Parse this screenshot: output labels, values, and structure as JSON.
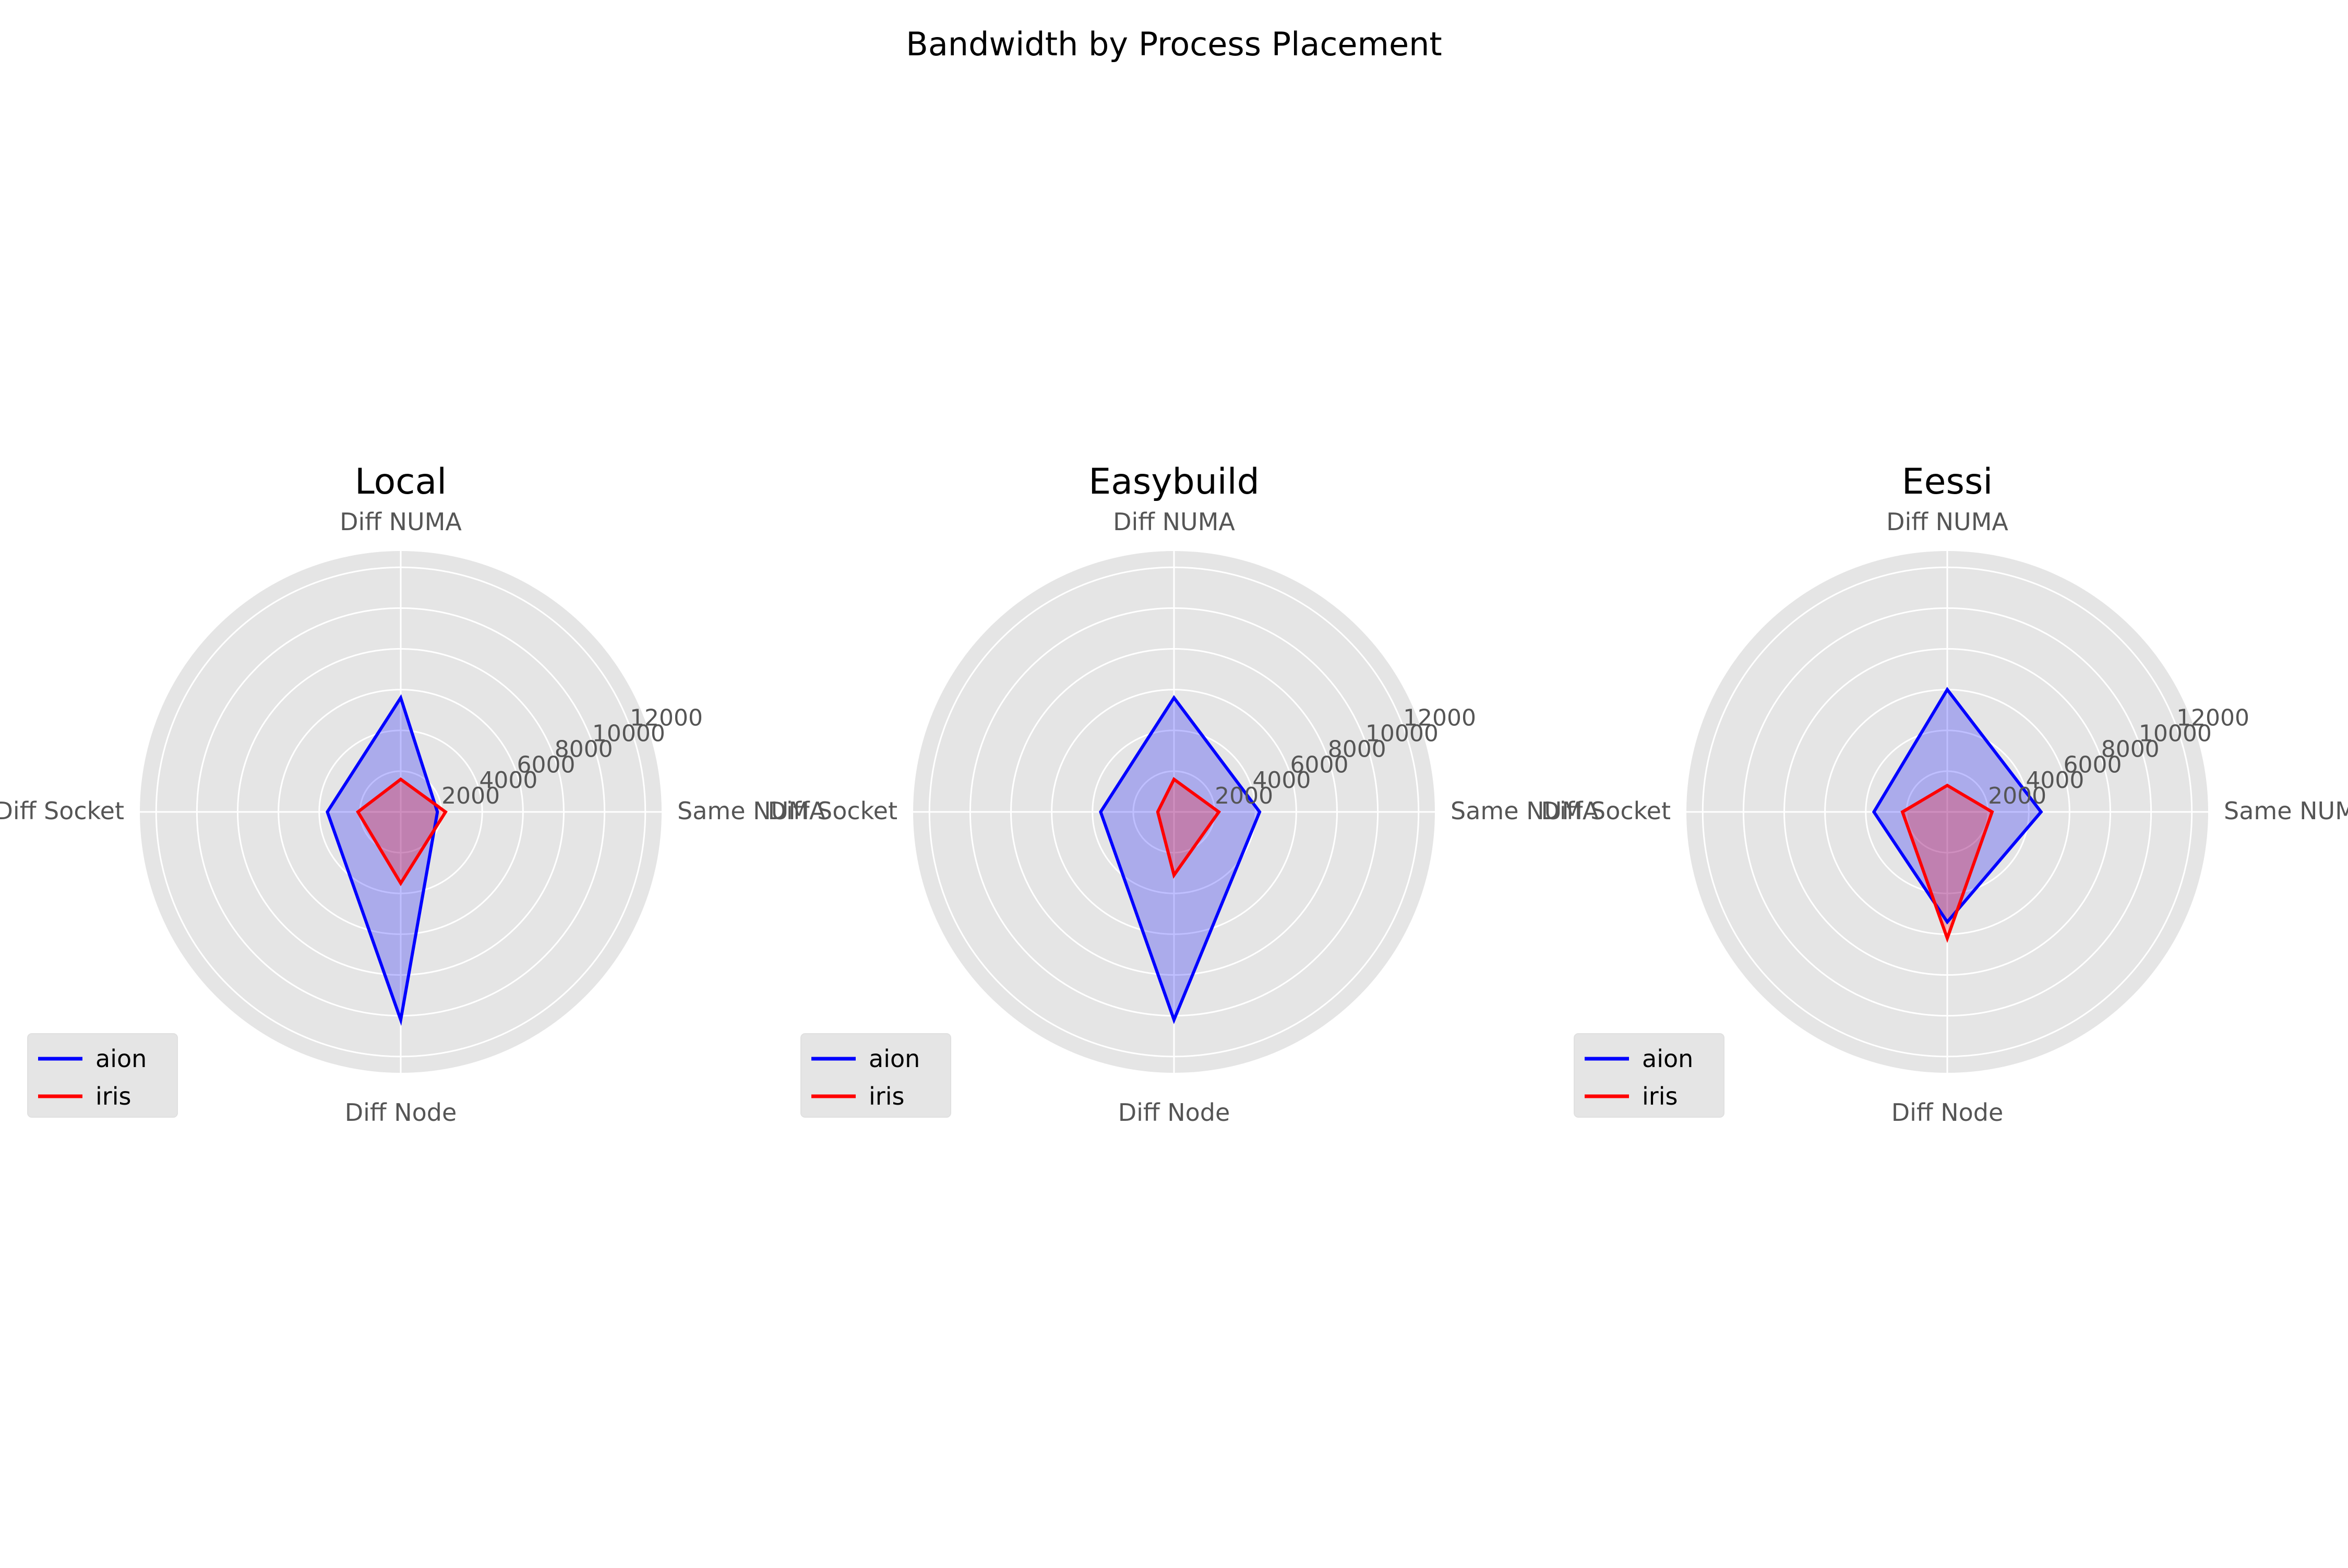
{
  "figure": {
    "title": "Bandwidth by Process Placement"
  },
  "chart_data": [
    {
      "type": "radar",
      "title": "Local",
      "categories": [
        "Same NUMA",
        "Diff NUMA",
        "Diff Socket",
        "Diff Node"
      ],
      "radial_ticks": [
        "2000",
        "4000",
        "6000",
        "8000",
        "10000",
        "12000"
      ],
      "rlim": [
        0,
        12800
      ],
      "series": [
        {
          "name": "aion",
          "values": [
            1800,
            5600,
            3600,
            10200
          ]
        },
        {
          "name": "iris",
          "values": [
            2200,
            1600,
            2100,
            3500
          ]
        }
      ],
      "legend": "lower-left",
      "grid": true
    },
    {
      "type": "radar",
      "title": "Easybuild",
      "categories": [
        "Same NUMA",
        "Diff NUMA",
        "Diff Socket",
        "Diff Node"
      ],
      "radial_ticks": [
        "2000",
        "4000",
        "6000",
        "8000",
        "10000",
        "12000"
      ],
      "rlim": [
        0,
        12800
      ],
      "series": [
        {
          "name": "aion",
          "values": [
            4200,
            5600,
            3600,
            10200
          ]
        },
        {
          "name": "iris",
          "values": [
            2200,
            1600,
            800,
            3100
          ]
        }
      ],
      "legend": "lower-left",
      "grid": true
    },
    {
      "type": "radar",
      "title": "Eessi",
      "categories": [
        "Same NUMA",
        "Diff NUMA",
        "Diff Socket",
        "Diff Node"
      ],
      "radial_ticks": [
        "2000",
        "4000",
        "6000",
        "8000",
        "10000",
        "12000"
      ],
      "rlim": [
        0,
        12800
      ],
      "series": [
        {
          "name": "aion",
          "values": [
            4600,
            6000,
            3600,
            5400
          ]
        },
        {
          "name": "iris",
          "values": [
            2200,
            1300,
            2200,
            6200
          ]
        }
      ],
      "legend": "lower-left",
      "grid": true
    }
  ],
  "colors": {
    "aion": "#0000ff",
    "iris": "#ff0000",
    "aion_fill": "#0000ff",
    "iris_fill": "#ff0000",
    "axes_bg": "#e5e5e5",
    "grid": "#ffffff"
  }
}
